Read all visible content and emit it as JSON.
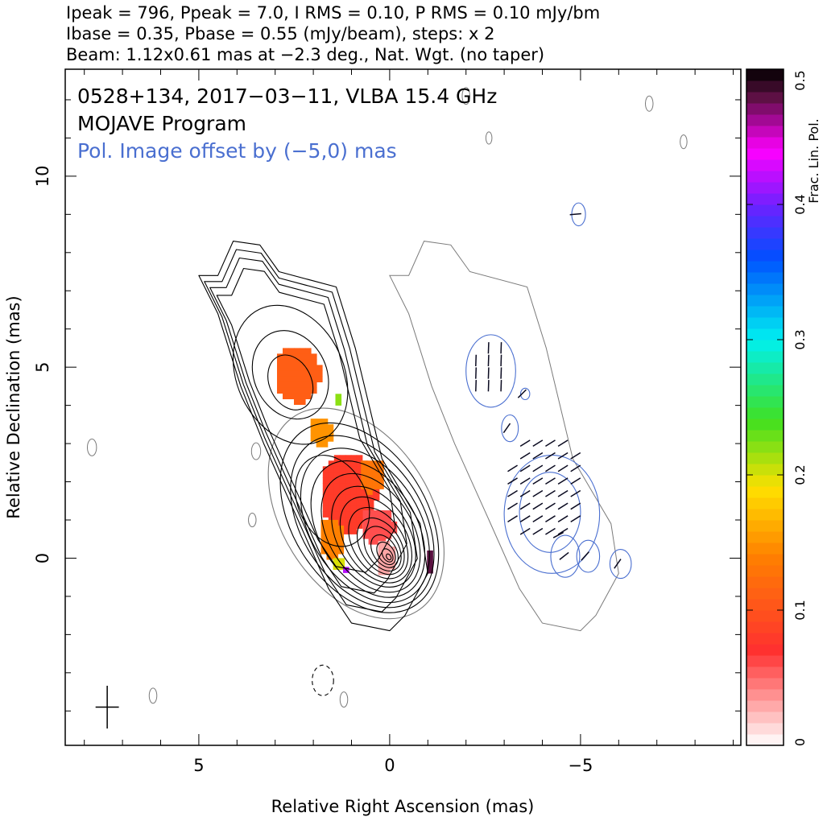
{
  "header": {
    "line1": "Ipeak = 796, Ppeak = 7.0, I RMS = 0.10, P RMS = 0.10 mJy/bm",
    "line2": "Ibase = 0.35, Pbase = 0.55 (mJy/beam), steps: x 2",
    "line3": "Beam: 1.12x0.61 mas at −2.3 deg., Nat. Wgt. (no taper)"
  },
  "annotations": {
    "source_line": "0528+134, 2017−03−11, VLBA 15.4 GHz",
    "program_line": "MOJAVE Program",
    "offset_line": "Pol. Image offset by (−5,0) mas"
  },
  "colors": {
    "stokes_i_contour": "#000000",
    "pol_intensity_contour": "#4a6fd0",
    "lowest_i_contour": "#7a7a7a",
    "evpa_tick": "#0a0a20",
    "offset_text": "#4a6fd0"
  },
  "chart_data": {
    "type": "heatmap",
    "xlabel": "Relative Right Ascension (mas)",
    "ylabel": "Relative Declination (mas)",
    "xlim": [
      8.5,
      -9.2
    ],
    "ylim": [
      -4.9,
      12.8
    ],
    "x_ticks": [
      {
        "v": 5,
        "label": "5"
      },
      {
        "v": 0,
        "label": "0"
      },
      {
        "v": -5,
        "label": "−5"
      }
    ],
    "y_ticks": [
      {
        "v": 0,
        "label": "0"
      },
      {
        "v": 5,
        "label": "5"
      },
      {
        "v": 10,
        "label": "10"
      }
    ],
    "colorbar": {
      "label": "Frac. Lin. Pol.",
      "range": [
        0,
        0.5
      ],
      "ticks": [
        {
          "v": 0,
          "label": "0"
        },
        {
          "v": 0.1,
          "label": "0.1"
        },
        {
          "v": 0.2,
          "label": "0.2"
        },
        {
          "v": 0.3,
          "label": "0.3"
        },
        {
          "v": 0.4,
          "label": "0.4"
        },
        {
          "v": 0.5,
          "label": "0.5"
        }
      ]
    },
    "stokes_i": {
      "peak_mjy_per_beam": 796,
      "base_mjy_per_beam": 0.35,
      "step_factor": 2,
      "core_position": [
        0,
        0
      ]
    },
    "pol_offset_mas": [
      -5,
      0
    ],
    "beam": {
      "major_mas": 1.12,
      "minor_mas": 0.61,
      "pa_deg": -2.3,
      "position": [
        7.4,
        -3.9
      ]
    },
    "frac_pol_regions": [
      {
        "ra": 2.5,
        "dec": 4.9,
        "frac_pol": 0.11
      },
      {
        "ra": 1.9,
        "dec": 3.4,
        "frac_pol": 0.15
      },
      {
        "ra": 1.45,
        "dec": 4.3,
        "frac_pol": 0.22
      },
      {
        "ra": 1.15,
        "dec": 1.8,
        "frac_pol": 0.08
      },
      {
        "ra": 0.55,
        "dec": 2.25,
        "frac_pol": 0.13
      },
      {
        "ra": 0.4,
        "dec": 0.9,
        "frac_pol": 0.06
      },
      {
        "ra": 0.2,
        "dec": 0.1,
        "frac_pol": 0.03
      },
      {
        "ra": 1.6,
        "dec": 0.6,
        "frac_pol": 0.14
      },
      {
        "ra": 1.45,
        "dec": -0.05,
        "frac_pol": 0.2
      },
      {
        "ra": 1.25,
        "dec": -0.2,
        "frac_pol": 0.42
      },
      {
        "ra": -0.95,
        "dec": 0.0,
        "frac_pol": 0.48
      }
    ],
    "evpa_regions": [
      {
        "ra": -2.7,
        "dec": 4.9,
        "angle_deg": 88
      },
      {
        "ra": -3.15,
        "dec": 3.4,
        "angle_deg": 55
      },
      {
        "ra": -3.55,
        "dec": 4.3,
        "angle_deg": 45
      },
      {
        "ra": -4.1,
        "dec": 1.8,
        "angle_deg": 32
      },
      {
        "ra": -4.5,
        "dec": 0.6,
        "angle_deg": 28
      },
      {
        "ra": -4.65,
        "dec": 0.05,
        "angle_deg": 38
      },
      {
        "ra": -5.2,
        "dec": 0.05,
        "angle_deg": 48
      },
      {
        "ra": -6.05,
        "dec": -0.15,
        "angle_deg": 55
      },
      {
        "ra": -4.95,
        "dec": 9.0,
        "angle_deg": 5
      }
    ]
  }
}
